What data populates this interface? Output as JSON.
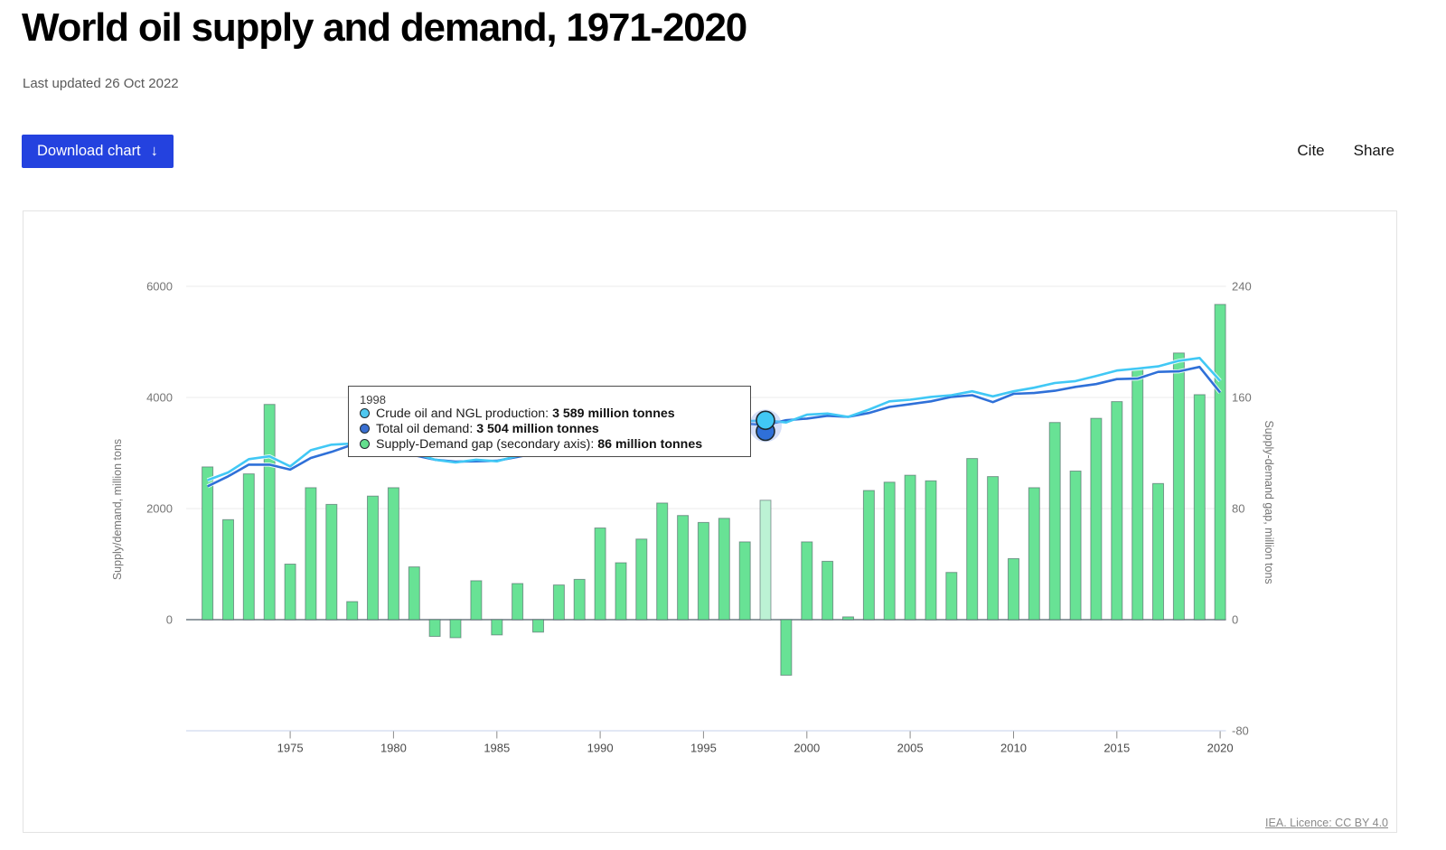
{
  "header": {
    "title": "World oil supply and demand, 1971-2020",
    "last_updated": "Last updated 26 Oct 2022",
    "download_button_label": "Download chart",
    "download_button_icon": "↓",
    "cite_label": "Cite",
    "share_label": "Share"
  },
  "footer": {
    "license_text": "IEA. Licence: CC BY 4.0"
  },
  "colors": {
    "button_bg": "#2442df",
    "bar_fill": "#68e295",
    "bar_fill_highlight": "#bcf2d4",
    "bar_stroke": "#46535b",
    "production_line": "#41c8f5",
    "demand_line": "#2f70d8",
    "grid_line": "#ebebeb",
    "zero_line": "#6e7a82",
    "bottom_axis_line": "#d9e1f2",
    "axis_text": "#757575",
    "x_label_text": "#4a4a4a"
  },
  "chart_data": {
    "type": "combo",
    "x": [
      1971,
      1972,
      1973,
      1974,
      1975,
      1976,
      1977,
      1978,
      1979,
      1980,
      1981,
      1982,
      1983,
      1984,
      1985,
      1986,
      1987,
      1988,
      1989,
      1990,
      1991,
      1992,
      1993,
      1994,
      1995,
      1996,
      1997,
      1998,
      1999,
      2000,
      2001,
      2002,
      2003,
      2004,
      2005,
      2006,
      2007,
      2008,
      2009,
      2010,
      2011,
      2012,
      2013,
      2014,
      2015,
      2016,
      2017,
      2018,
      2019,
      2020
    ],
    "series": [
      {
        "name": "Crude oil and NGL production",
        "type": "line",
        "axis": "left",
        "color": "#41c8f5",
        "values": [
          2510,
          2650,
          2890,
          2940,
          2760,
          3050,
          3150,
          3170,
          3290,
          3140,
          3000,
          2880,
          2830,
          2880,
          2850,
          2950,
          2990,
          3100,
          3170,
          3240,
          3230,
          3260,
          3280,
          3330,
          3390,
          3480,
          3570,
          3589,
          3550,
          3690,
          3710,
          3650,
          3780,
          3930,
          3960,
          4010,
          4040,
          4110,
          4020,
          4110,
          4175,
          4260,
          4295,
          4385,
          4485,
          4520,
          4560,
          4660,
          4710,
          4300
        ]
      },
      {
        "name": "Total oil demand",
        "type": "line",
        "axis": "left",
        "color": "#2f70d8",
        "values": [
          2400,
          2580,
          2790,
          2790,
          2700,
          2910,
          3020,
          3150,
          3195,
          3050,
          2960,
          2880,
          2845,
          2850,
          2860,
          2930,
          3000,
          3080,
          3140,
          3180,
          3190,
          3200,
          3200,
          3260,
          3320,
          3410,
          3530,
          3504,
          3590,
          3620,
          3670,
          3650,
          3720,
          3830,
          3880,
          3930,
          4010,
          4040,
          3915,
          4065,
          4080,
          4120,
          4190,
          4240,
          4330,
          4340,
          4460,
          4470,
          4550,
          4090
        ]
      },
      {
        "name": "Supply-Demand gap (secondary axis)",
        "type": "bar",
        "axis": "right",
        "color": "#68e295",
        "values": [
          110,
          72,
          105,
          155,
          40,
          95,
          83,
          13,
          89,
          95,
          38,
          -12,
          -13,
          28,
          -11,
          26,
          -9,
          25,
          29,
          66,
          41,
          58,
          84,
          75,
          70,
          73,
          56,
          86,
          -40,
          56,
          42,
          2,
          93,
          99,
          104,
          100,
          34,
          116,
          103,
          44,
          95,
          142,
          107,
          145,
          157,
          181,
          98,
          192,
          162,
          227
        ]
      }
    ],
    "left_axis": {
      "label": "Supply/demand, million tons",
      "ticks": [
        0,
        2000,
        4000,
        6000
      ],
      "range": [
        -2000,
        6000
      ]
    },
    "right_axis": {
      "label": "Supply-demand gap, million tons",
      "ticks": [
        -80,
        0,
        80,
        160,
        240
      ],
      "range": [
        -80,
        240
      ]
    },
    "x_ticks": [
      1975,
      1980,
      1985,
      1990,
      1995,
      2000,
      2005,
      2010,
      2015,
      2020
    ],
    "grid": true,
    "legend_position": "none",
    "tooltip": {
      "year": "1998",
      "highlight_year": 1998,
      "items": [
        {
          "label": "Crude oil and NGL production: ",
          "value": "3 589 million tonnes",
          "color": "#4fc8f0"
        },
        {
          "label": "Total oil demand: ",
          "value": "3 504 million tonnes",
          "color": "#3a6fd1"
        },
        {
          "label": "Supply-Demand gap (secondary axis): ",
          "value": "86 million tonnes",
          "color": "#63df8e"
        }
      ]
    }
  }
}
